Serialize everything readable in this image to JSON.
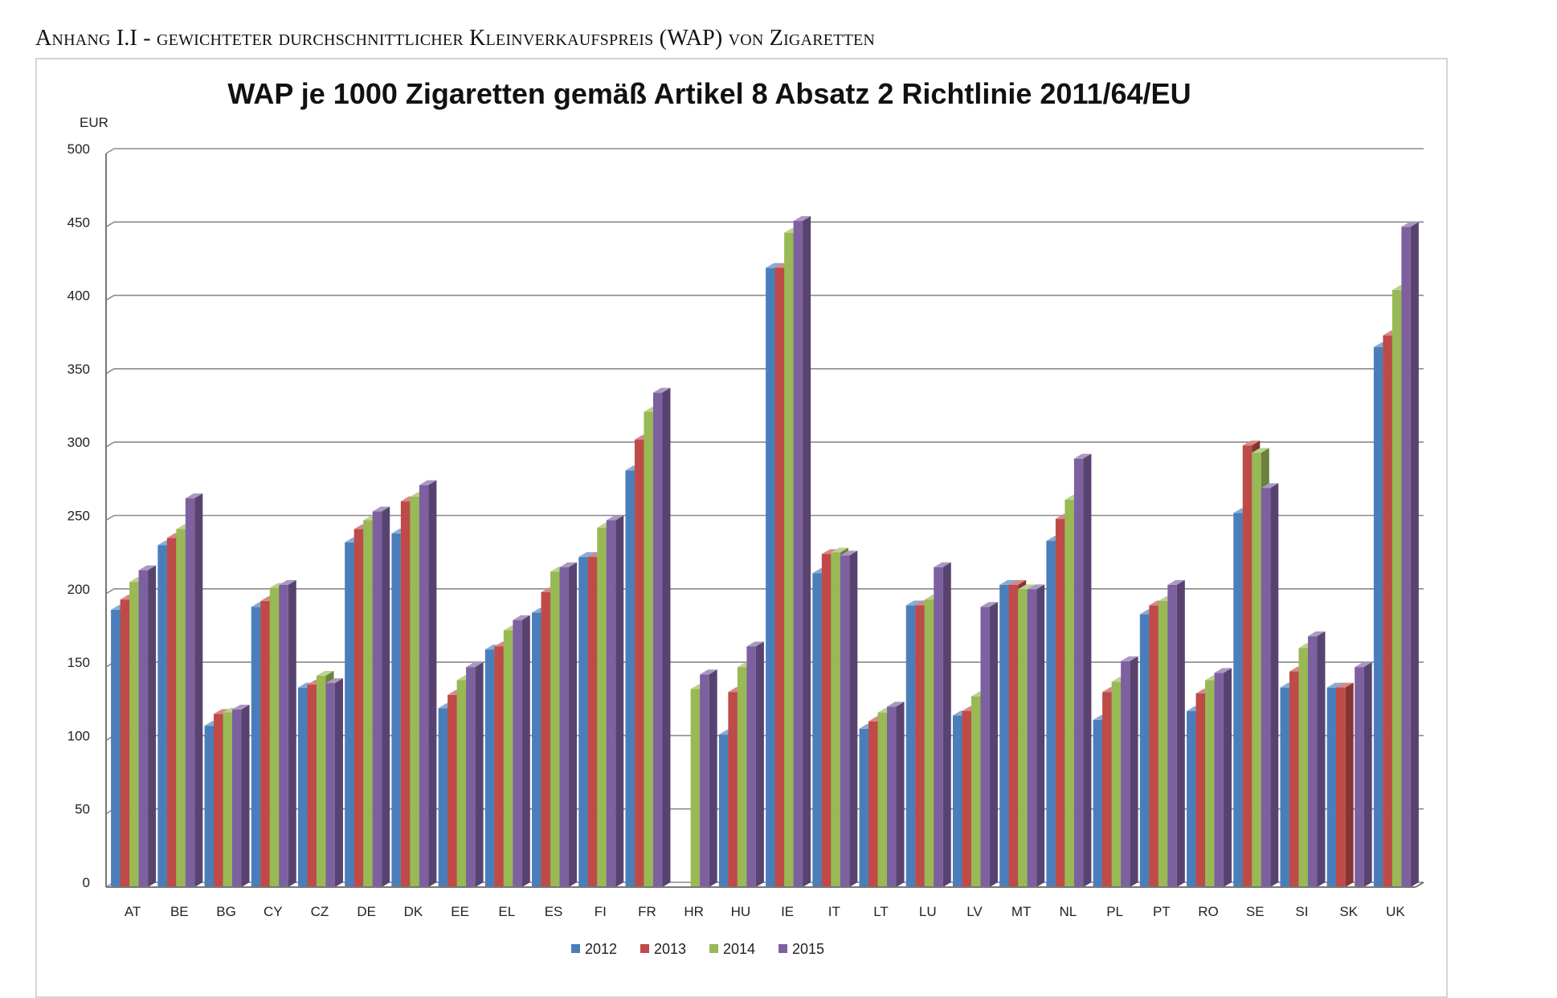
{
  "page": {
    "heading": "Anhang I.I - gewichteter durchschnittlicher Kleinverkaufspreis (WAP) von Zigaretten"
  },
  "chart_data": {
    "type": "bar",
    "title": "WAP je 1000 Zigaretten gemäß Artikel 8 Absatz 2 Richtlinie 2011/64/EU",
    "ylabel": "EUR",
    "xlabel": "",
    "ylim": [
      0,
      500
    ],
    "yticks": [
      0,
      50,
      100,
      150,
      200,
      250,
      300,
      350,
      400,
      450,
      500
    ],
    "grid": true,
    "legend_position": "bottom",
    "categories": [
      "AT",
      "BE",
      "BG",
      "CY",
      "CZ",
      "DE",
      "DK",
      "EE",
      "EL",
      "ES",
      "FI",
      "FR",
      "HR",
      "HU",
      "IE",
      "IT",
      "LT",
      "LU",
      "LV",
      "MT",
      "NL",
      "PL",
      "PT",
      "RO",
      "SE",
      "SI",
      "SK",
      "UK"
    ],
    "series": [
      {
        "name": "2012",
        "color": "#4a7ebb",
        "values": [
          189,
          233,
          110,
          191,
          136,
          235,
          241,
          122,
          162,
          187,
          225,
          284,
          null,
          104,
          422,
          214,
          108,
          192,
          117,
          206,
          236,
          114,
          186,
          120,
          255,
          136,
          136,
          368
        ]
      },
      {
        "name": "2013",
        "color": "#be4b48",
        "values": [
          196,
          238,
          118,
          195,
          138,
          244,
          263,
          131,
          164,
          201,
          225,
          305,
          null,
          133,
          422,
          227,
          113,
          192,
          120,
          206,
          251,
          133,
          192,
          132,
          301,
          147,
          136,
          376
        ]
      },
      {
        "name": "2014",
        "color": "#98b954",
        "values": [
          208,
          244,
          119,
          204,
          144,
          250,
          266,
          141,
          175,
          215,
          245,
          324,
          135,
          150,
          446,
          228,
          119,
          196,
          130,
          203,
          264,
          140,
          195,
          141,
          296,
          163,
          null,
          407
        ]
      },
      {
        "name": "2015",
        "color": "#7d60a0",
        "values": [
          216,
          265,
          121,
          206,
          139,
          256,
          274,
          150,
          182,
          218,
          250,
          337,
          145,
          164,
          454,
          226,
          123,
          218,
          191,
          203,
          292,
          154,
          206,
          146,
          272,
          171,
          150,
          450
        ]
      }
    ]
  }
}
